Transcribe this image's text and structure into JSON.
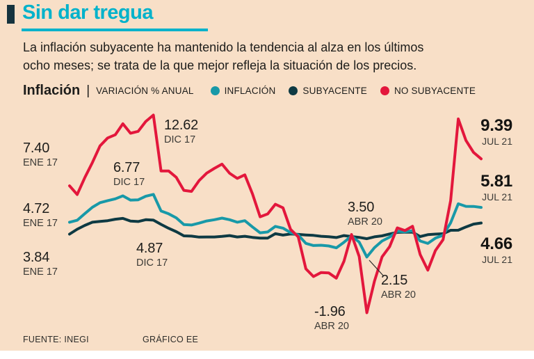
{
  "colors": {
    "background": "#f8dfc7",
    "title": "#00b2cb",
    "accent_bar": "#16333e",
    "text": "#1d1d1b",
    "inflacion": "#1899a8",
    "subyacente": "#0e3a43",
    "no_subyacente": "#e3173c"
  },
  "header": {
    "title": "Sin dar tregua",
    "subtitle_lines": [
      "La inflación subyacente ha mantenido la tendencia al alza en los últimos",
      "ocho meses; se trata de la que mejor refleja la situación de los precios."
    ]
  },
  "legend": {
    "series_label": "Inflación",
    "separator": "|",
    "unit_label": "VARIACIÓN % ANUAL",
    "items": [
      {
        "label": "INFLACIÓN",
        "color": "#1899a8"
      },
      {
        "label": "SUBYACENTE",
        "color": "#0e3a43"
      },
      {
        "label": "NO SUBYACENTE",
        "color": "#e3173c"
      }
    ]
  },
  "annotations": {
    "red_start": {
      "value": "7.40",
      "date": "ENE 17"
    },
    "red_peak": {
      "value": "12.62",
      "date": "DIC 17"
    },
    "headline_dec17": {
      "value": "6.77",
      "date": "DIC 17"
    },
    "headline_start": {
      "value": "4.72",
      "date": "ENE 17"
    },
    "core_dec17": {
      "value": "4.87",
      "date": "DIC 17"
    },
    "core_start": {
      "value": "3.84",
      "date": "ENE 17"
    },
    "core_apr20": {
      "value": "3.50",
      "date": "ABR 20"
    },
    "headline_apr20": {
      "value": "2.15",
      "date": "ABR 20"
    },
    "red_apr20": {
      "value": "-1.96",
      "date": "ABR 20"
    },
    "red_end": {
      "value": "9.39",
      "date": "JUL 21"
    },
    "headline_end": {
      "value": "5.81",
      "date": "JUL 21"
    },
    "core_end": {
      "value": "4.66",
      "date": "JUL 21"
    }
  },
  "footer": {
    "source": "FUENTE: INEGI",
    "credit": "GRÁFICO EE"
  },
  "chart_data": {
    "type": "line",
    "title": "Inflación",
    "ylabel": "VARIACIÓN % ANUAL",
    "frequency": "monthly",
    "x_start_label": "ENE 17",
    "x_end_label": "JUL 21",
    "n_points": 55,
    "ylim": [
      -2.6,
      13.0
    ],
    "grid": false,
    "axes_visible": false,
    "legend_position": "top",
    "series": [
      {
        "key": "subyacente",
        "name": "SUBYACENTE",
        "color": "#0e3a43",
        "values": [
          3.84,
          4.2,
          4.48,
          4.72,
          4.78,
          4.83,
          4.94,
          5.0,
          4.8,
          4.77,
          4.9,
          4.87,
          4.56,
          4.27,
          4.02,
          3.71,
          3.69,
          3.62,
          3.63,
          3.63,
          3.67,
          3.73,
          3.63,
          3.68,
          3.6,
          3.54,
          3.55,
          3.87,
          3.77,
          3.85,
          3.82,
          3.78,
          3.75,
          3.68,
          3.65,
          3.59,
          3.73,
          3.66,
          3.6,
          3.5,
          3.64,
          3.71,
          3.85,
          3.97,
          3.99,
          3.98,
          3.66,
          3.8,
          3.84,
          3.87,
          4.12,
          4.13,
          4.37,
          4.58,
          4.66
        ]
      },
      {
        "key": "inflacion",
        "name": "INFLACIÓN",
        "color": "#1899a8",
        "values": [
          4.72,
          4.86,
          5.35,
          5.82,
          6.16,
          6.31,
          6.44,
          6.66,
          6.35,
          6.37,
          6.63,
          6.77,
          5.55,
          5.34,
          5.04,
          4.55,
          4.51,
          4.65,
          4.81,
          4.9,
          5.02,
          4.9,
          4.72,
          4.83,
          4.37,
          3.94,
          4.0,
          4.41,
          4.28,
          3.95,
          3.78,
          3.16,
          3.0,
          3.02,
          2.97,
          2.83,
          3.24,
          3.7,
          3.25,
          2.15,
          2.84,
          3.33,
          3.62,
          4.05,
          4.01,
          4.09,
          3.33,
          3.15,
          3.54,
          3.76,
          4.67,
          6.08,
          5.89,
          5.88,
          5.81
        ]
      },
      {
        "key": "no_subyacente",
        "name": "NO SUBYACENTE",
        "color": "#e3173c",
        "values": [
          7.4,
          6.76,
          8.0,
          9.12,
          10.35,
          10.93,
          11.17,
          11.98,
          11.28,
          11.42,
          12.15,
          12.62,
          8.5,
          8.5,
          8.03,
          7.07,
          6.99,
          7.79,
          8.34,
          8.69,
          9.0,
          8.33,
          7.95,
          8.21,
          6.81,
          5.12,
          5.33,
          6.04,
          5.78,
          4.19,
          3.64,
          1.28,
          0.71,
          1.01,
          0.98,
          0.59,
          1.84,
          3.81,
          2.19,
          -1.96,
          0.36,
          2.16,
          2.92,
          4.3,
          4.1,
          4.42,
          2.33,
          1.18,
          2.63,
          3.43,
          6.31,
          12.34,
          10.75,
          9.87,
          9.39
        ]
      }
    ]
  }
}
